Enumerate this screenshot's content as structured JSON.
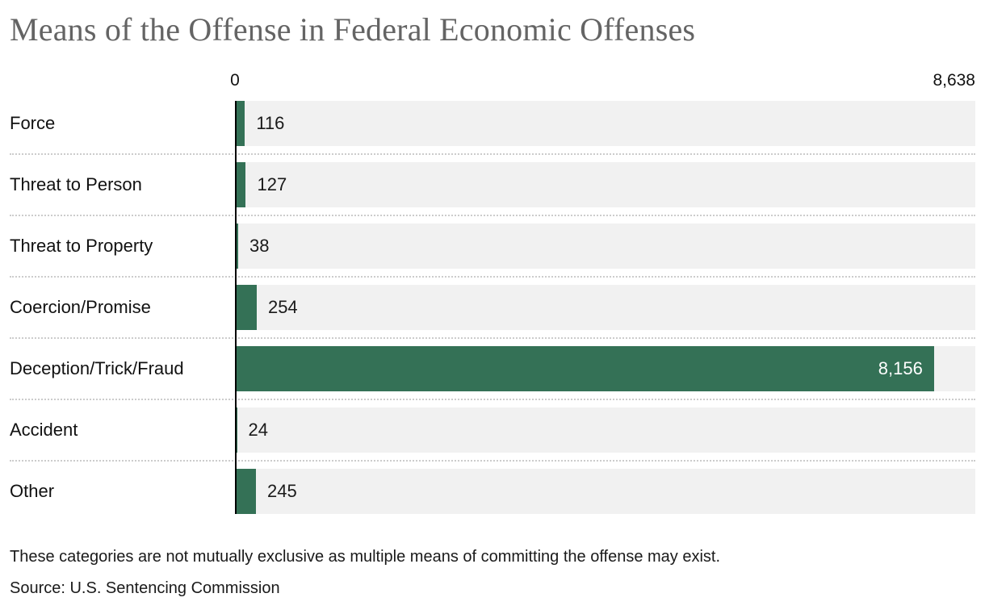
{
  "chart": {
    "title": "Means of the Offense in Federal Economic Offenses",
    "note": "These categories are not mutually exclusive as multiple means of committing the offense may exist.",
    "source": "Source: U.S. Sentencing Commission"
  },
  "chart_data": {
    "type": "bar",
    "orientation": "horizontal",
    "title": "Means of the Offense in Federal Economic Offenses",
    "categories": [
      "Force",
      "Threat to Person",
      "Threat to Property",
      "Coercion/Promise",
      "Deception/Trick/Fraud",
      "Accident",
      "Other"
    ],
    "values": [
      116,
      127,
      38,
      254,
      8156,
      24,
      245
    ],
    "value_labels": [
      "116",
      "127",
      "38",
      "254",
      "8,156",
      "24",
      "245"
    ],
    "axis": {
      "min": 0,
      "max": 8638,
      "min_label": "0",
      "max_label": "8,638",
      "position": "top"
    },
    "label_inside": [
      false,
      false,
      false,
      false,
      true,
      false,
      false
    ],
    "grid": "dotted-row-separators",
    "legend": "none",
    "colors": {
      "bar": "#347156",
      "track": "#f1f1f1",
      "axis_line": "#000000",
      "title": "#646464",
      "text": "#1a1a1a",
      "divider": "#cccccc",
      "inside_label": "#ffffff"
    },
    "note": "These categories are not mutually exclusive as multiple means of committing the offense may exist.",
    "source": "Source: U.S. Sentencing Commission"
  }
}
